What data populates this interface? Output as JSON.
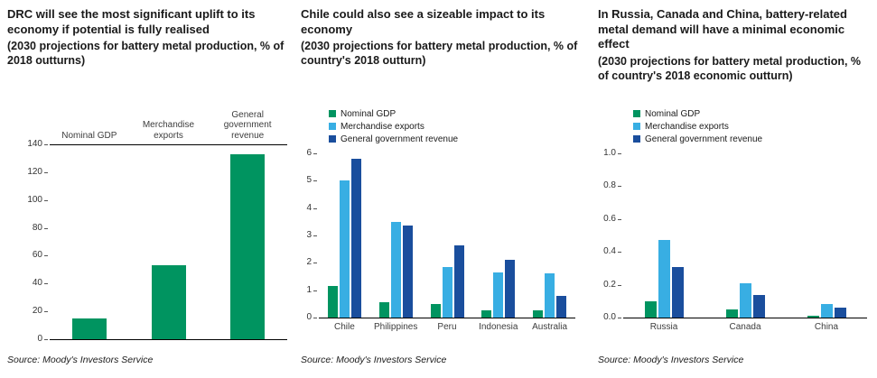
{
  "page": {
    "background": "#ffffff"
  },
  "chart_data": [
    {
      "type": "bar",
      "title": "DRC will see the most significant uplift to its economy if potential is fully realised",
      "subtitle": "(2030 projections for battery metal production, % of 2018 outturns)",
      "source": "Source: Moody's Investors Service",
      "categories": [
        "Nominal GDP",
        "Merchandise exports",
        "General government revenue"
      ],
      "values": [
        15,
        53,
        133
      ],
      "color": "#009460",
      "ylim": [
        0,
        140
      ],
      "ytick": 20,
      "ydecimals": 0,
      "grid": false,
      "top_border": true,
      "category_labels_position": "top",
      "legend_position": "none",
      "xlabel": "",
      "ylabel": ""
    },
    {
      "type": "bar",
      "title": "Chile could also see a sizeable impact to its economy",
      "subtitle": "(2030 projections for battery metal production, % of country's 2018 outturn)",
      "source": "Source: Moody's Investors Service",
      "categories": [
        "Chile",
        "Philippines",
        "Peru",
        "Indonesia",
        "Australia"
      ],
      "series": [
        {
          "name": "Nominal GDP",
          "color": "#009460",
          "values": [
            1.15,
            0.55,
            0.5,
            0.25,
            0.25
          ]
        },
        {
          "name": "Merchandise exports",
          "color": "#38AEE3",
          "values": [
            5.0,
            3.5,
            1.85,
            1.65,
            1.6
          ]
        },
        {
          "name": "General government revenue",
          "color": "#1A4E9D",
          "values": [
            5.8,
            3.35,
            2.65,
            2.1,
            0.8
          ]
        }
      ],
      "ylim": [
        0,
        6
      ],
      "ytick": 1,
      "ydecimals": 0,
      "grid": false,
      "category_labels_position": "bottom",
      "legend_position": "top-left",
      "xlabel": "",
      "ylabel": ""
    },
    {
      "type": "bar",
      "title": "In Russia, Canada and China, battery-related metal demand will have a minimal economic effect",
      "subtitle": "(2030 projections for battery metal production, % of country's 2018 economic outturn)",
      "source": "Source: Moody's Investors Service",
      "categories": [
        "Russia",
        "Canada",
        "China"
      ],
      "series": [
        {
          "name": "Nominal GDP",
          "color": "#009460",
          "values": [
            0.1,
            0.05,
            0.01
          ]
        },
        {
          "name": "Merchandise exports",
          "color": "#38AEE3",
          "values": [
            0.47,
            0.21,
            0.08
          ]
        },
        {
          "name": "General government revenue",
          "color": "#1A4E9D",
          "values": [
            0.31,
            0.14,
            0.06
          ]
        }
      ],
      "ylim": [
        0,
        1.0
      ],
      "ytick": 0.2,
      "ydecimals": 1,
      "grid": false,
      "category_labels_position": "bottom",
      "legend_position": "top-left",
      "xlabel": "",
      "ylabel": ""
    }
  ]
}
